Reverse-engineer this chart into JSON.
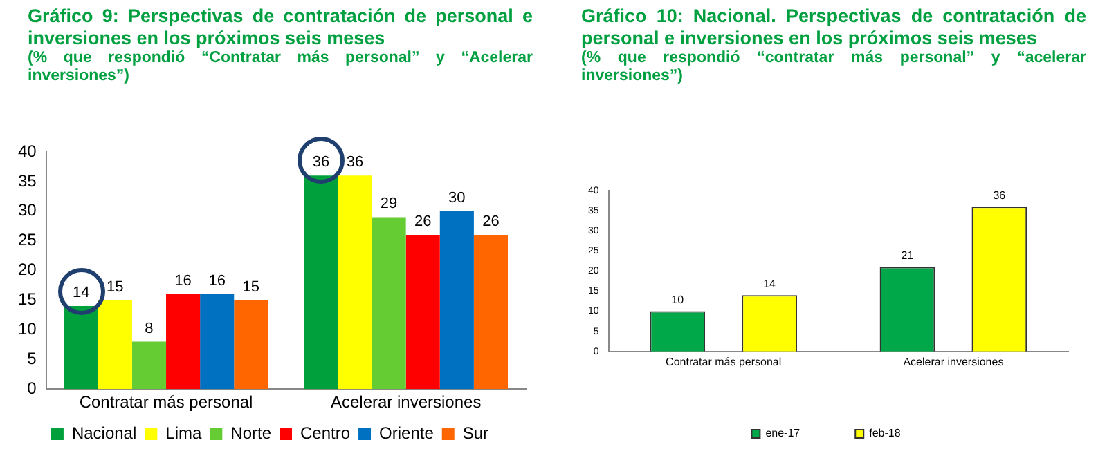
{
  "chart_data": [
    {
      "type": "bar",
      "title": "Gráfico 9: Perspectivas de contratación de personal e inversiones en los próximos seis meses",
      "subtitle": "(% que respondió “Contratar más personal” y “Acelerar inversiones”)",
      "categories": [
        "Contratar más personal",
        "Acelerar inversiones"
      ],
      "series": [
        {
          "name": "Nacional",
          "color": "#00a03c",
          "values": [
            14,
            36
          ]
        },
        {
          "name": "Lima",
          "color": "#ffff00",
          "values": [
            15,
            36
          ]
        },
        {
          "name": "Norte",
          "color": "#66cc33",
          "values": [
            8,
            29
          ]
        },
        {
          "name": "Centro",
          "color": "#ff0000",
          "values": [
            16,
            26
          ]
        },
        {
          "name": "Oriente",
          "color": "#0070c0",
          "values": [
            16,
            30
          ]
        },
        {
          "name": "Sur",
          "color": "#ff6600",
          "values": [
            15,
            26
          ]
        }
      ],
      "ylim": [
        0,
        40
      ],
      "yticks": [
        0,
        5,
        10,
        15,
        20,
        25,
        30,
        35,
        40
      ],
      "grid": false,
      "legend": "bottom",
      "data_labels": true
    },
    {
      "type": "bar",
      "title": "Gráfico 10: Nacional. Perspectivas de contratación de personal e inversiones en los próximos seis meses",
      "subtitle": "(% que respondió “contratar más personal” y “acelerar inversiones”)",
      "categories": [
        "Contratar más personal",
        "Acelerar inversiones"
      ],
      "series": [
        {
          "name": "ene-17",
          "color": "#00a84a",
          "values": [
            10,
            21
          ]
        },
        {
          "name": "feb-18",
          "color": "#ffff00",
          "values": [
            14,
            36
          ]
        }
      ],
      "ylim": [
        0,
        40
      ],
      "yticks": [
        0,
        5,
        10,
        15,
        20,
        25,
        30,
        35,
        40
      ],
      "grid": false,
      "legend": "bottom",
      "data_labels": true
    }
  ]
}
